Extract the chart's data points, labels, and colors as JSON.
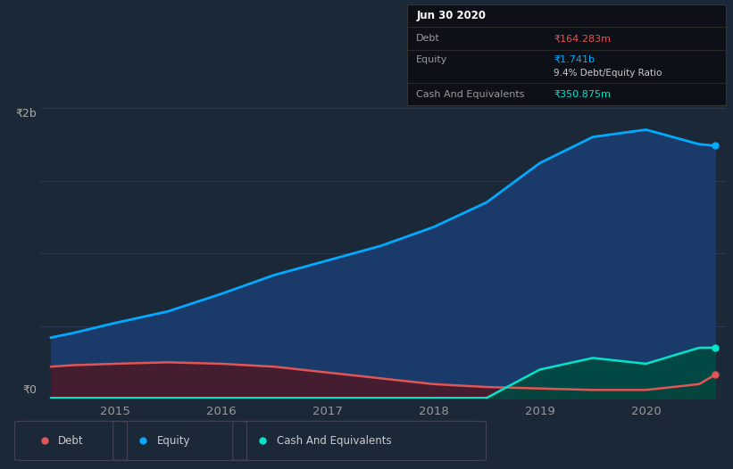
{
  "bg_color": "#1b2838",
  "plot_bg_color": "#1b2838",
  "grid_color": "#2a3a52",
  "box_bg": "#0d1117",
  "box_border": "#333333",
  "date_label": "Jun 30 2020",
  "debt_label": "Debt",
  "debt_value": "₹164.283m",
  "debt_value_color": "#e05555",
  "equity_label": "Equity",
  "equity_value": "₹1.741b",
  "equity_value_color": "#00aaff",
  "ratio_text": "9.4% Debt/Equity Ratio",
  "ratio_color": "#cccccc",
  "cash_label": "Cash And Equivalents",
  "cash_value": "₹350.875m",
  "cash_value_color": "#00e5cc",
  "y_label_top": "₹2b",
  "y_label_bottom": "₹0",
  "years": [
    2014.4,
    2014.6,
    2015.0,
    2015.5,
    2016.0,
    2016.5,
    2017.0,
    2017.5,
    2018.0,
    2018.5,
    2019.0,
    2019.5,
    2020.0,
    2020.5,
    2020.65
  ],
  "equity": [
    0.42,
    0.45,
    0.52,
    0.6,
    0.72,
    0.85,
    0.95,
    1.05,
    1.18,
    1.35,
    1.62,
    1.8,
    1.85,
    1.75,
    1.74
  ],
  "debt": [
    0.22,
    0.23,
    0.24,
    0.25,
    0.24,
    0.22,
    0.18,
    0.14,
    0.1,
    0.08,
    0.07,
    0.06,
    0.06,
    0.1,
    0.164
  ],
  "cash": [
    0.005,
    0.005,
    0.005,
    0.005,
    0.005,
    0.005,
    0.005,
    0.005,
    0.005,
    0.005,
    0.2,
    0.28,
    0.24,
    0.35,
    0.351
  ],
  "equity_color": "#00aaff",
  "equity_fill": "#1a3a6a",
  "debt_color": "#e05555",
  "debt_fill": "#4a1a2a",
  "cash_color": "#00e5cc",
  "cash_fill": "#004a40",
  "ylim": [
    0,
    2.0
  ],
  "xlim": [
    2014.3,
    2020.75
  ],
  "x_ticks": [
    2015,
    2016,
    2017,
    2018,
    2019,
    2020
  ],
  "x_tick_labels": [
    "2015",
    "2016",
    "2017",
    "2018",
    "2019",
    "2020"
  ],
  "legend_items": [
    {
      "label": "Debt",
      "color": "#e05555"
    },
    {
      "label": "Equity",
      "color": "#00aaff"
    },
    {
      "label": "Cash And Equivalents",
      "color": "#00e5cc"
    }
  ]
}
